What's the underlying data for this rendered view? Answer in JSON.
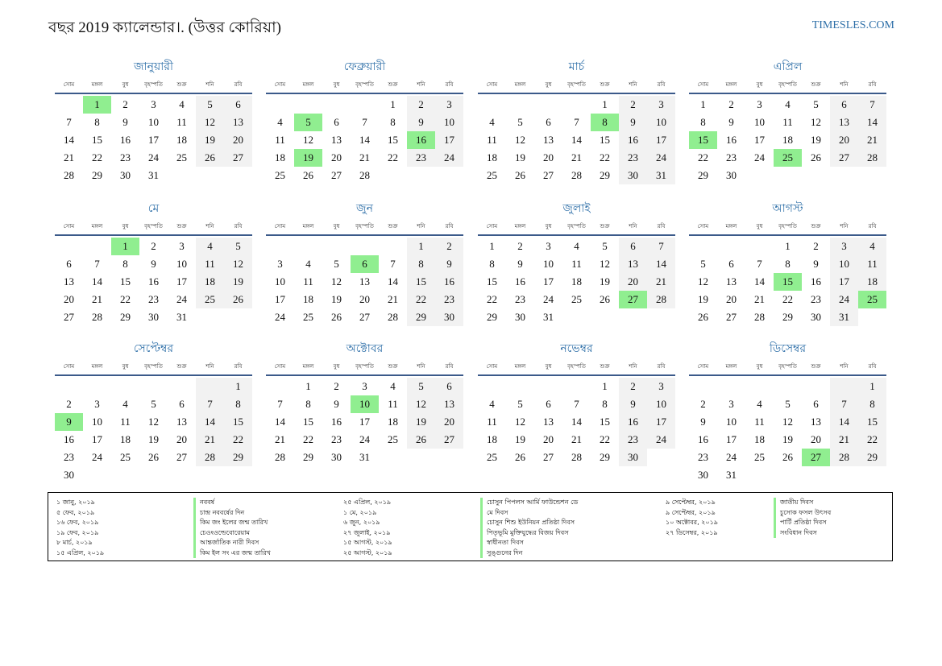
{
  "title": "বছর 2019 ক্যালেন্ডার।. (উত্তর কোরিয়া)",
  "site": "TIMESLES.COM",
  "weekdays": [
    "সোম",
    "মঙ্গল",
    "বুধ",
    "বৃহস্পতি",
    "শুক্র",
    "শনি",
    "রবি"
  ],
  "colors": {
    "accent": "#2e6fa8",
    "holiday": "#90ee90",
    "weekend": "#f2f2f2",
    "rule": "#3b5a8a"
  },
  "months": [
    {
      "name": "জানুয়ারী",
      "offset": 1,
      "days": 31,
      "holidays": [
        1
      ]
    },
    {
      "name": "ফেব্রুয়ারী",
      "offset": 4,
      "days": 28,
      "holidays": [
        5,
        16,
        19
      ]
    },
    {
      "name": "মার্চ",
      "offset": 4,
      "days": 31,
      "holidays": [
        8
      ]
    },
    {
      "name": "এপ্রিল",
      "offset": 0,
      "days": 30,
      "holidays": [
        15,
        25
      ]
    },
    {
      "name": "মে",
      "offset": 2,
      "days": 31,
      "holidays": [
        1
      ]
    },
    {
      "name": "জুন",
      "offset": 5,
      "days": 30,
      "holidays": [
        6
      ]
    },
    {
      "name": "জুলাই",
      "offset": 0,
      "days": 31,
      "holidays": [
        27
      ]
    },
    {
      "name": "আগস্ট",
      "offset": 3,
      "days": 31,
      "holidays": [
        15,
        25
      ]
    },
    {
      "name": "সেপ্টেম্বর",
      "offset": 6,
      "days": 30,
      "holidays": [
        9
      ]
    },
    {
      "name": "অক্টোবর",
      "offset": 1,
      "days": 31,
      "holidays": [
        10
      ]
    },
    {
      "name": "নভেম্বর",
      "offset": 4,
      "days": 30,
      "holidays": []
    },
    {
      "name": "ডিসেম্বর",
      "offset": 6,
      "days": 31,
      "holidays": [
        27
      ]
    }
  ],
  "holidays": [
    {
      "date": "১ জানু, ২০১৯",
      "name": "নববর্ষ"
    },
    {
      "date": "৫ ফেব, ২০১৯",
      "name": "চান্দ্র নববর্ষের দিন"
    },
    {
      "date": "১৬ ফেব, ২০১৯",
      "name": "কিম জং ইলের জন্ম তারিখ"
    },
    {
      "date": "১৯ ফেব, ২০১৯",
      "name": "চেওংওল্ডেবোরেয়াম"
    },
    {
      "date": "৮ মার্চ, ২০১৯",
      "name": "আন্তর্জাতিক নারী দিবস"
    },
    {
      "date": "১৫ এপ্রিল, ২০১৯",
      "name": "কিম ইল সং এর জন্ম তারিখ"
    },
    {
      "date": "২৫ এপ্রিল, ২০১৯",
      "name": "চোসুন পিপলস আর্মি ফাউন্ডেশন ডে"
    },
    {
      "date": "১ মে, ২০১৯",
      "name": "মে দিবস"
    },
    {
      "date": "৬ জুন, ২০১৯",
      "name": "চোসুন শিশু ইউনিয়ন প্রতিষ্ঠা দিবস"
    },
    {
      "date": "২৭ জুলাই, ২০১৯",
      "name": "পিতৃভূমি মুক্তিযুদ্ধের বিজয় দিবস"
    },
    {
      "date": "১৫ আগস্ট, ২০১৯",
      "name": "স্বাধীনতা দিবস"
    },
    {
      "date": "২৫ আগস্ট, ২০১৯",
      "name": "সুঙ্গুনের দিন"
    },
    {
      "date": "৯ সেপ্টেম্বর, ২০১৯",
      "name": "জাতীয় দিবস"
    },
    {
      "date": "৯ সেপ্টেম্বর, ২০১৯",
      "name": "চুসোক ফসল উৎসব"
    },
    {
      "date": "১০ অক্টোবর, ২০১৯",
      "name": "পার্টি প্রতিষ্ঠা দিবস"
    },
    {
      "date": "২৭ ডিসেম্বর, ২০১৯",
      "name": "সংবিধান দিবস"
    }
  ]
}
